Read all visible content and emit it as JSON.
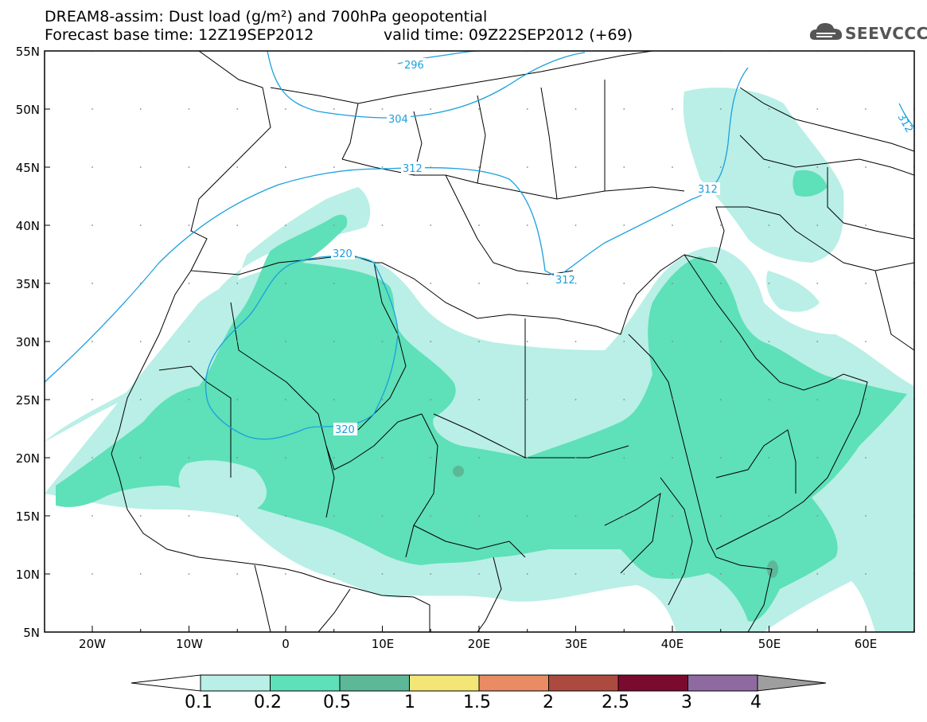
{
  "header": {
    "title_line1": "DREAM8-assim: Dust load (g/m²) and 700hPa geopotential",
    "title_line2": "Forecast base time: 12Z19SEP2012",
    "valid_time": "valid time: 09Z22SEP2012 (+69)",
    "logo_text": "SEEVCCC"
  },
  "axes": {
    "lat_labels": [
      "55N",
      "50N",
      "45N",
      "40N",
      "35N",
      "30N",
      "25N",
      "20N",
      "15N",
      "10N",
      "5N"
    ],
    "lon_labels": [
      "20W",
      "10W",
      "0",
      "10E",
      "20E",
      "30E",
      "40E",
      "50E",
      "60E"
    ]
  },
  "contours": {
    "labels": [
      "296",
      "304",
      "312",
      "312",
      "312",
      "320",
      "320",
      "312"
    ]
  },
  "colorbar": {
    "levels": [
      "0.1",
      "0.2",
      "0.5",
      "1",
      "1.5",
      "2",
      "2.5",
      "3",
      "4"
    ],
    "colors": [
      "#b9efe6",
      "#5ee0b8",
      "#5cb897",
      "#f3e676",
      "#e98c64",
      "#ad4a3f",
      "#7b0a2f",
      "#8f6aa1",
      "#9e9e9e"
    ]
  },
  "palette": {
    "map_bg": "#ffffff",
    "contour": "#1aa0e0",
    "border": "#000000"
  }
}
